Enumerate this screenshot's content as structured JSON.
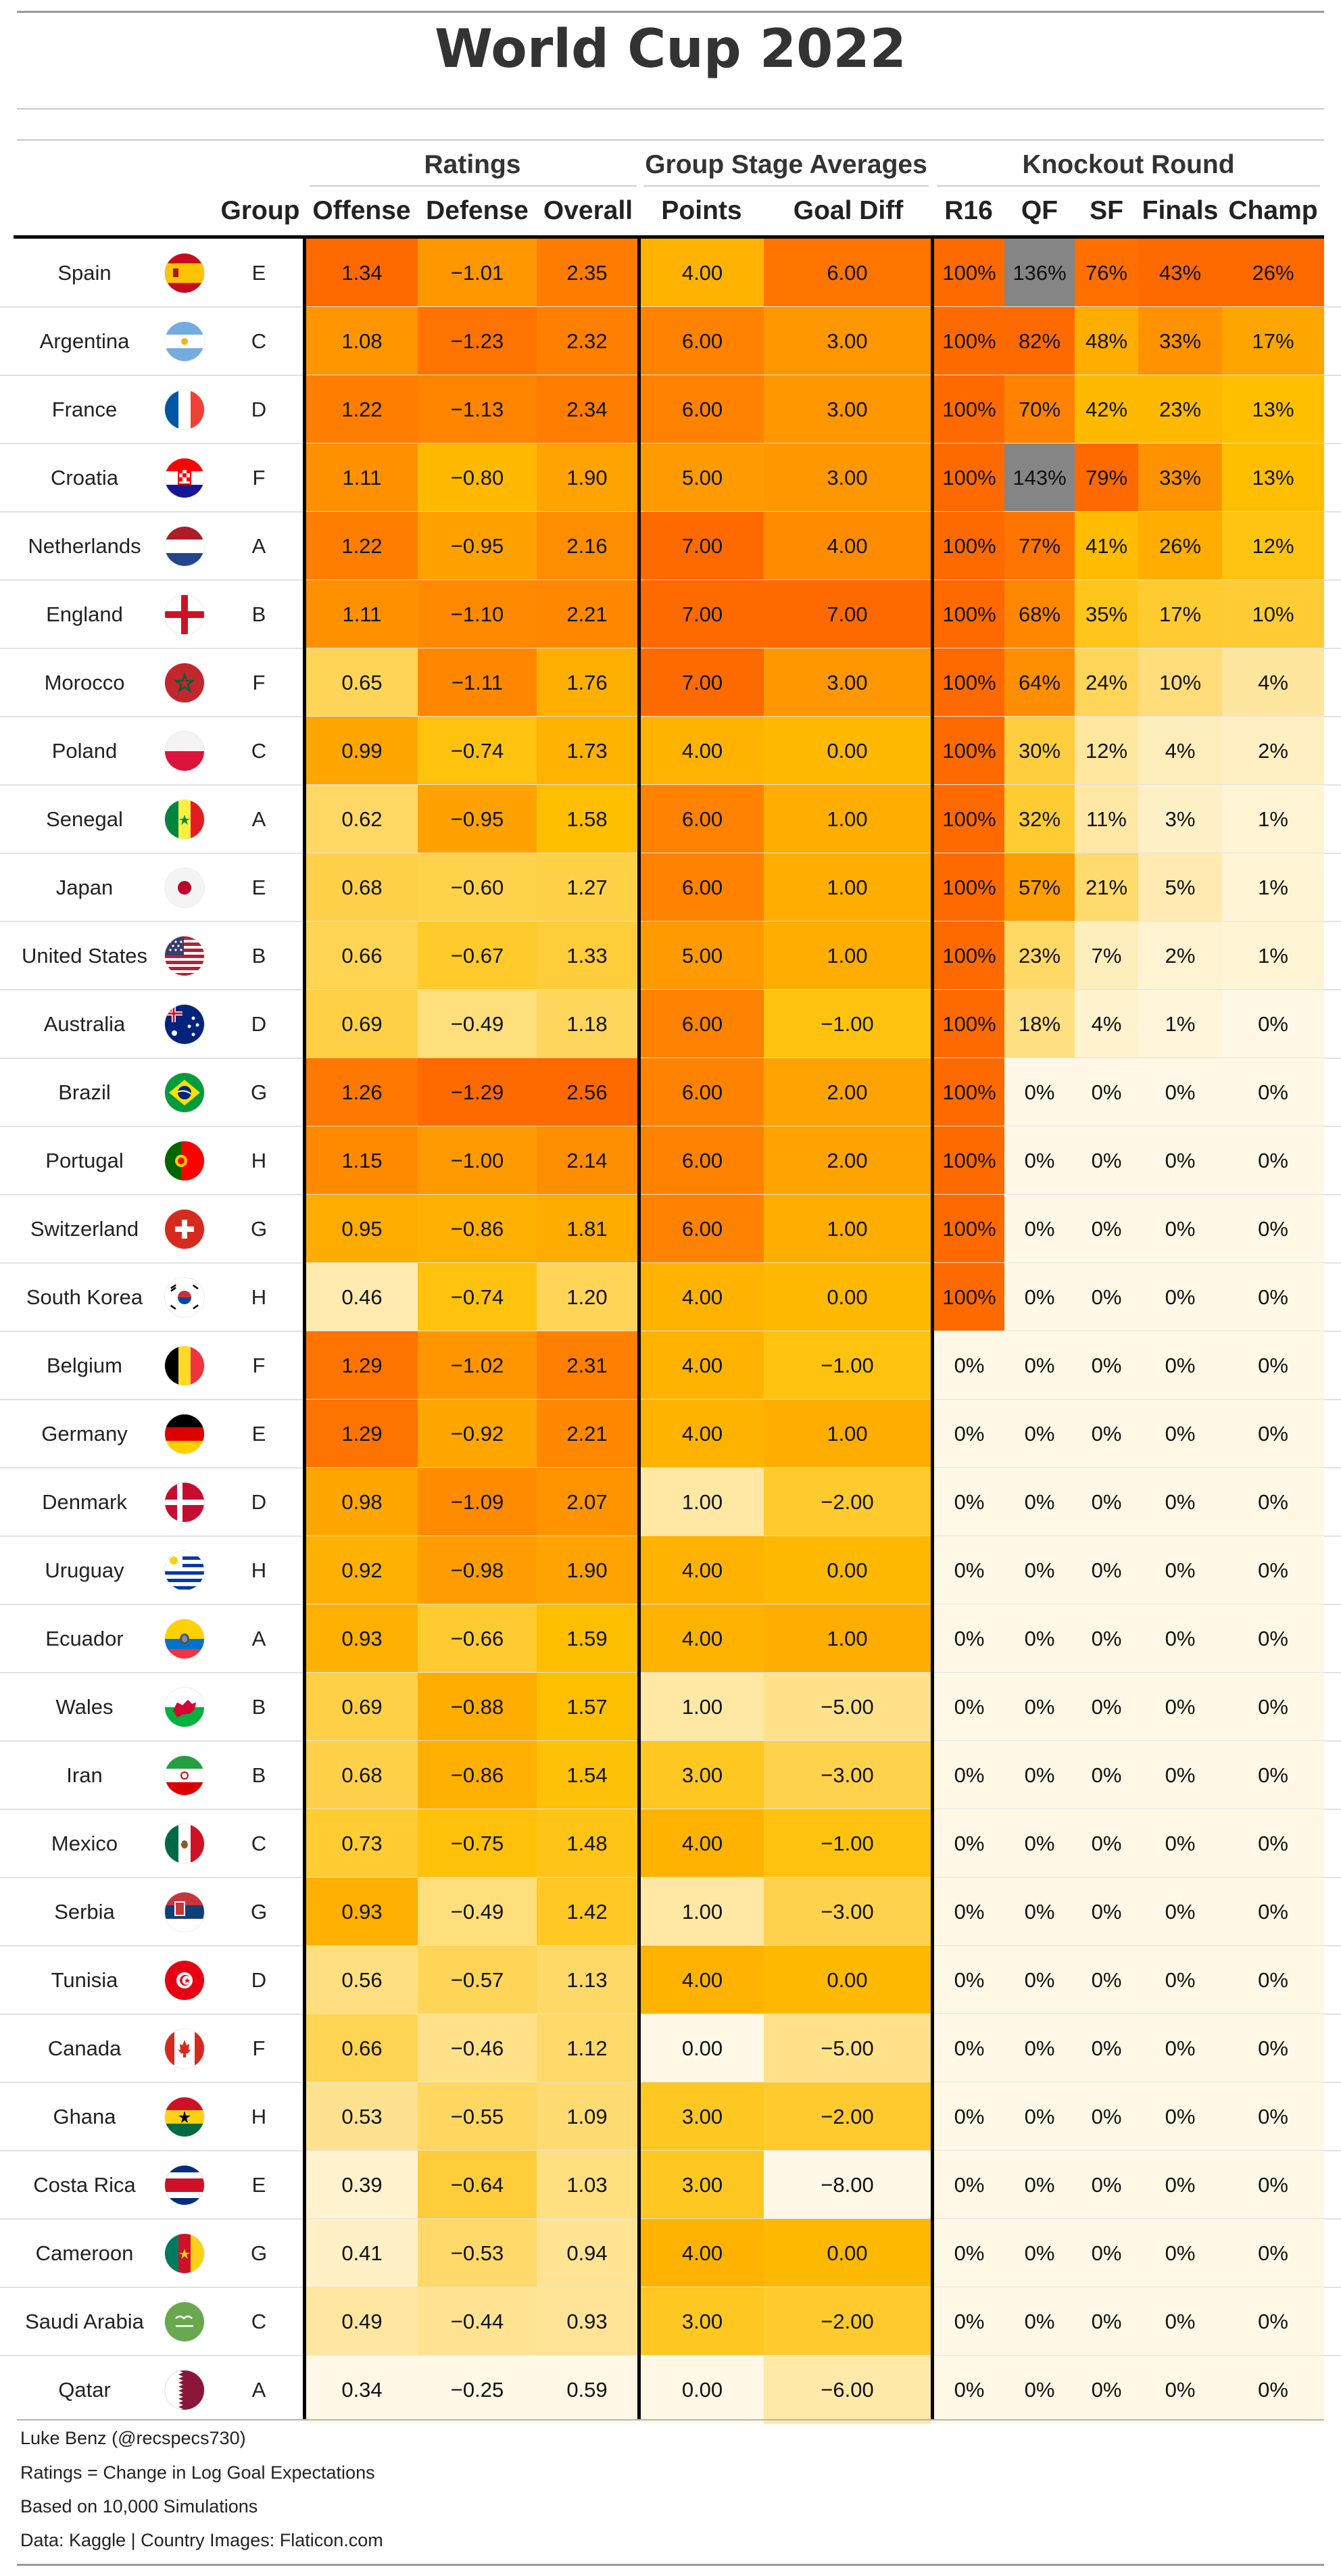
{
  "title": "World Cup 2022",
  "spanners": {
    "ratings": "Ratings",
    "group_stage": "Group Stage Averages",
    "knockout": "Knockout Round"
  },
  "columns": {
    "group": "Group",
    "offense": "Offense",
    "defense": "Defense",
    "overall": "Overall",
    "points": "Points",
    "goal_diff": "Goal Diff",
    "r16": "R16",
    "qf": "QF",
    "sf": "SF",
    "finals": "Finals",
    "champ": "Champ"
  },
  "footnotes": [
    "Luke Benz (@recspecs730)",
    "Ratings = Change in Log Goal Expectations",
    "Based on 10,000 Simulations",
    "Data: Kaggle | Country Images: Flaticon.com"
  ],
  "colors": {
    "scale_low": "#fff8e6",
    "scale_mid": "#ffbf00",
    "scale_high": "#ff6a00",
    "over_100_cell": "#858585",
    "rule": "#000000"
  },
  "chart_data": {
    "type": "table",
    "rows": [
      {
        "team": "Spain",
        "flag": "spain-flag-icon",
        "group": "E",
        "offense": "1.34",
        "defense": "−1.01",
        "overall": "2.35",
        "points": "4.00",
        "goal_diff": "6.00",
        "r16": "100%",
        "qf": "136%",
        "sf": "76%",
        "finals": "43%",
        "champ": "26%"
      },
      {
        "team": "Argentina",
        "flag": "argentina-flag-icon",
        "group": "C",
        "offense": "1.08",
        "defense": "−1.23",
        "overall": "2.32",
        "points": "6.00",
        "goal_diff": "3.00",
        "r16": "100%",
        "qf": "82%",
        "sf": "48%",
        "finals": "33%",
        "champ": "17%"
      },
      {
        "team": "France",
        "flag": "france-flag-icon",
        "group": "D",
        "offense": "1.22",
        "defense": "−1.13",
        "overall": "2.34",
        "points": "6.00",
        "goal_diff": "3.00",
        "r16": "100%",
        "qf": "70%",
        "sf": "42%",
        "finals": "23%",
        "champ": "13%"
      },
      {
        "team": "Croatia",
        "flag": "croatia-flag-icon",
        "group": "F",
        "offense": "1.11",
        "defense": "−0.80",
        "overall": "1.90",
        "points": "5.00",
        "goal_diff": "3.00",
        "r16": "100%",
        "qf": "143%",
        "sf": "79%",
        "finals": "33%",
        "champ": "13%"
      },
      {
        "team": "Netherlands",
        "flag": "netherlands-flag-icon",
        "group": "A",
        "offense": "1.22",
        "defense": "−0.95",
        "overall": "2.16",
        "points": "7.00",
        "goal_diff": "4.00",
        "r16": "100%",
        "qf": "77%",
        "sf": "41%",
        "finals": "26%",
        "champ": "12%"
      },
      {
        "team": "England",
        "flag": "england-flag-icon",
        "group": "B",
        "offense": "1.11",
        "defense": "−1.10",
        "overall": "2.21",
        "points": "7.00",
        "goal_diff": "7.00",
        "r16": "100%",
        "qf": "68%",
        "sf": "35%",
        "finals": "17%",
        "champ": "10%"
      },
      {
        "team": "Morocco",
        "flag": "morocco-flag-icon",
        "group": "F",
        "offense": "0.65",
        "defense": "−1.11",
        "overall": "1.76",
        "points": "7.00",
        "goal_diff": "3.00",
        "r16": "100%",
        "qf": "64%",
        "sf": "24%",
        "finals": "10%",
        "champ": "4%"
      },
      {
        "team": "Poland",
        "flag": "poland-flag-icon",
        "group": "C",
        "offense": "0.99",
        "defense": "−0.74",
        "overall": "1.73",
        "points": "4.00",
        "goal_diff": "0.00",
        "r16": "100%",
        "qf": "30%",
        "sf": "12%",
        "finals": "4%",
        "champ": "2%"
      },
      {
        "team": "Senegal",
        "flag": "senegal-flag-icon",
        "group": "A",
        "offense": "0.62",
        "defense": "−0.95",
        "overall": "1.58",
        "points": "6.00",
        "goal_diff": "1.00",
        "r16": "100%",
        "qf": "32%",
        "sf": "11%",
        "finals": "3%",
        "champ": "1%"
      },
      {
        "team": "Japan",
        "flag": "japan-flag-icon",
        "group": "E",
        "offense": "0.68",
        "defense": "−0.60",
        "overall": "1.27",
        "points": "6.00",
        "goal_diff": "1.00",
        "r16": "100%",
        "qf": "57%",
        "sf": "21%",
        "finals": "5%",
        "champ": "1%"
      },
      {
        "team": "United States",
        "flag": "usa-flag-icon",
        "group": "B",
        "offense": "0.66",
        "defense": "−0.67",
        "overall": "1.33",
        "points": "5.00",
        "goal_diff": "1.00",
        "r16": "100%",
        "qf": "23%",
        "sf": "7%",
        "finals": "2%",
        "champ": "1%"
      },
      {
        "team": "Australia",
        "flag": "australia-flag-icon",
        "group": "D",
        "offense": "0.69",
        "defense": "−0.49",
        "overall": "1.18",
        "points": "6.00",
        "goal_diff": "−1.00",
        "r16": "100%",
        "qf": "18%",
        "sf": "4%",
        "finals": "1%",
        "champ": "0%"
      },
      {
        "team": "Brazil",
        "flag": "brazil-flag-icon",
        "group": "G",
        "offense": "1.26",
        "defense": "−1.29",
        "overall": "2.56",
        "points": "6.00",
        "goal_diff": "2.00",
        "r16": "100%",
        "qf": "0%",
        "sf": "0%",
        "finals": "0%",
        "champ": "0%"
      },
      {
        "team": "Portugal",
        "flag": "portugal-flag-icon",
        "group": "H",
        "offense": "1.15",
        "defense": "−1.00",
        "overall": "2.14",
        "points": "6.00",
        "goal_diff": "2.00",
        "r16": "100%",
        "qf": "0%",
        "sf": "0%",
        "finals": "0%",
        "champ": "0%"
      },
      {
        "team": "Switzerland",
        "flag": "switzerland-flag-icon",
        "group": "G",
        "offense": "0.95",
        "defense": "−0.86",
        "overall": "1.81",
        "points": "6.00",
        "goal_diff": "1.00",
        "r16": "100%",
        "qf": "0%",
        "sf": "0%",
        "finals": "0%",
        "champ": "0%"
      },
      {
        "team": "South Korea",
        "flag": "south-korea-flag-icon",
        "group": "H",
        "offense": "0.46",
        "defense": "−0.74",
        "overall": "1.20",
        "points": "4.00",
        "goal_diff": "0.00",
        "r16": "100%",
        "qf": "0%",
        "sf": "0%",
        "finals": "0%",
        "champ": "0%"
      },
      {
        "team": "Belgium",
        "flag": "belgium-flag-icon",
        "group": "F",
        "offense": "1.29",
        "defense": "−1.02",
        "overall": "2.31",
        "points": "4.00",
        "goal_diff": "−1.00",
        "r16": "0%",
        "qf": "0%",
        "sf": "0%",
        "finals": "0%",
        "champ": "0%"
      },
      {
        "team": "Germany",
        "flag": "germany-flag-icon",
        "group": "E",
        "offense": "1.29",
        "defense": "−0.92",
        "overall": "2.21",
        "points": "4.00",
        "goal_diff": "1.00",
        "r16": "0%",
        "qf": "0%",
        "sf": "0%",
        "finals": "0%",
        "champ": "0%"
      },
      {
        "team": "Denmark",
        "flag": "denmark-flag-icon",
        "group": "D",
        "offense": "0.98",
        "defense": "−1.09",
        "overall": "2.07",
        "points": "1.00",
        "goal_diff": "−2.00",
        "r16": "0%",
        "qf": "0%",
        "sf": "0%",
        "finals": "0%",
        "champ": "0%"
      },
      {
        "team": "Uruguay",
        "flag": "uruguay-flag-icon",
        "group": "H",
        "offense": "0.92",
        "defense": "−0.98",
        "overall": "1.90",
        "points": "4.00",
        "goal_diff": "0.00",
        "r16": "0%",
        "qf": "0%",
        "sf": "0%",
        "finals": "0%",
        "champ": "0%"
      },
      {
        "team": "Ecuador",
        "flag": "ecuador-flag-icon",
        "group": "A",
        "offense": "0.93",
        "defense": "−0.66",
        "overall": "1.59",
        "points": "4.00",
        "goal_diff": "1.00",
        "r16": "0%",
        "qf": "0%",
        "sf": "0%",
        "finals": "0%",
        "champ": "0%"
      },
      {
        "team": "Wales",
        "flag": "wales-flag-icon",
        "group": "B",
        "offense": "0.69",
        "defense": "−0.88",
        "overall": "1.57",
        "points": "1.00",
        "goal_diff": "−5.00",
        "r16": "0%",
        "qf": "0%",
        "sf": "0%",
        "finals": "0%",
        "champ": "0%"
      },
      {
        "team": "Iran",
        "flag": "iran-flag-icon",
        "group": "B",
        "offense": "0.68",
        "defense": "−0.86",
        "overall": "1.54",
        "points": "3.00",
        "goal_diff": "−3.00",
        "r16": "0%",
        "qf": "0%",
        "sf": "0%",
        "finals": "0%",
        "champ": "0%"
      },
      {
        "team": "Mexico",
        "flag": "mexico-flag-icon",
        "group": "C",
        "offense": "0.73",
        "defense": "−0.75",
        "overall": "1.48",
        "points": "4.00",
        "goal_diff": "−1.00",
        "r16": "0%",
        "qf": "0%",
        "sf": "0%",
        "finals": "0%",
        "champ": "0%"
      },
      {
        "team": "Serbia",
        "flag": "serbia-flag-icon",
        "group": "G",
        "offense": "0.93",
        "defense": "−0.49",
        "overall": "1.42",
        "points": "1.00",
        "goal_diff": "−3.00",
        "r16": "0%",
        "qf": "0%",
        "sf": "0%",
        "finals": "0%",
        "champ": "0%"
      },
      {
        "team": "Tunisia",
        "flag": "tunisia-flag-icon",
        "group": "D",
        "offense": "0.56",
        "defense": "−0.57",
        "overall": "1.13",
        "points": "4.00",
        "goal_diff": "0.00",
        "r16": "0%",
        "qf": "0%",
        "sf": "0%",
        "finals": "0%",
        "champ": "0%"
      },
      {
        "team": "Canada",
        "flag": "canada-flag-icon",
        "group": "F",
        "offense": "0.66",
        "defense": "−0.46",
        "overall": "1.12",
        "points": "0.00",
        "goal_diff": "−5.00",
        "r16": "0%",
        "qf": "0%",
        "sf": "0%",
        "finals": "0%",
        "champ": "0%"
      },
      {
        "team": "Ghana",
        "flag": "ghana-flag-icon",
        "group": "H",
        "offense": "0.53",
        "defense": "−0.55",
        "overall": "1.09",
        "points": "3.00",
        "goal_diff": "−2.00",
        "r16": "0%",
        "qf": "0%",
        "sf": "0%",
        "finals": "0%",
        "champ": "0%"
      },
      {
        "team": "Costa Rica",
        "flag": "costa-rica-flag-icon",
        "group": "E",
        "offense": "0.39",
        "defense": "−0.64",
        "overall": "1.03",
        "points": "3.00",
        "goal_diff": "−8.00",
        "r16": "0%",
        "qf": "0%",
        "sf": "0%",
        "finals": "0%",
        "champ": "0%"
      },
      {
        "team": "Cameroon",
        "flag": "cameroon-flag-icon",
        "group": "G",
        "offense": "0.41",
        "defense": "−0.53",
        "overall": "0.94",
        "points": "4.00",
        "goal_diff": "0.00",
        "r16": "0%",
        "qf": "0%",
        "sf": "0%",
        "finals": "0%",
        "champ": "0%"
      },
      {
        "team": "Saudi Arabia",
        "flag": "saudi-arabia-flag-icon",
        "group": "C",
        "offense": "0.49",
        "defense": "−0.44",
        "overall": "0.93",
        "points": "3.00",
        "goal_diff": "−2.00",
        "r16": "0%",
        "qf": "0%",
        "sf": "0%",
        "finals": "0%",
        "champ": "0%"
      },
      {
        "team": "Qatar",
        "flag": "qatar-flag-icon",
        "group": "A",
        "offense": "0.34",
        "defense": "−0.25",
        "overall": "0.59",
        "points": "0.00",
        "goal_diff": "−6.00",
        "r16": "0%",
        "qf": "0%",
        "sf": "0%",
        "finals": "0%",
        "champ": "0%"
      }
    ]
  }
}
